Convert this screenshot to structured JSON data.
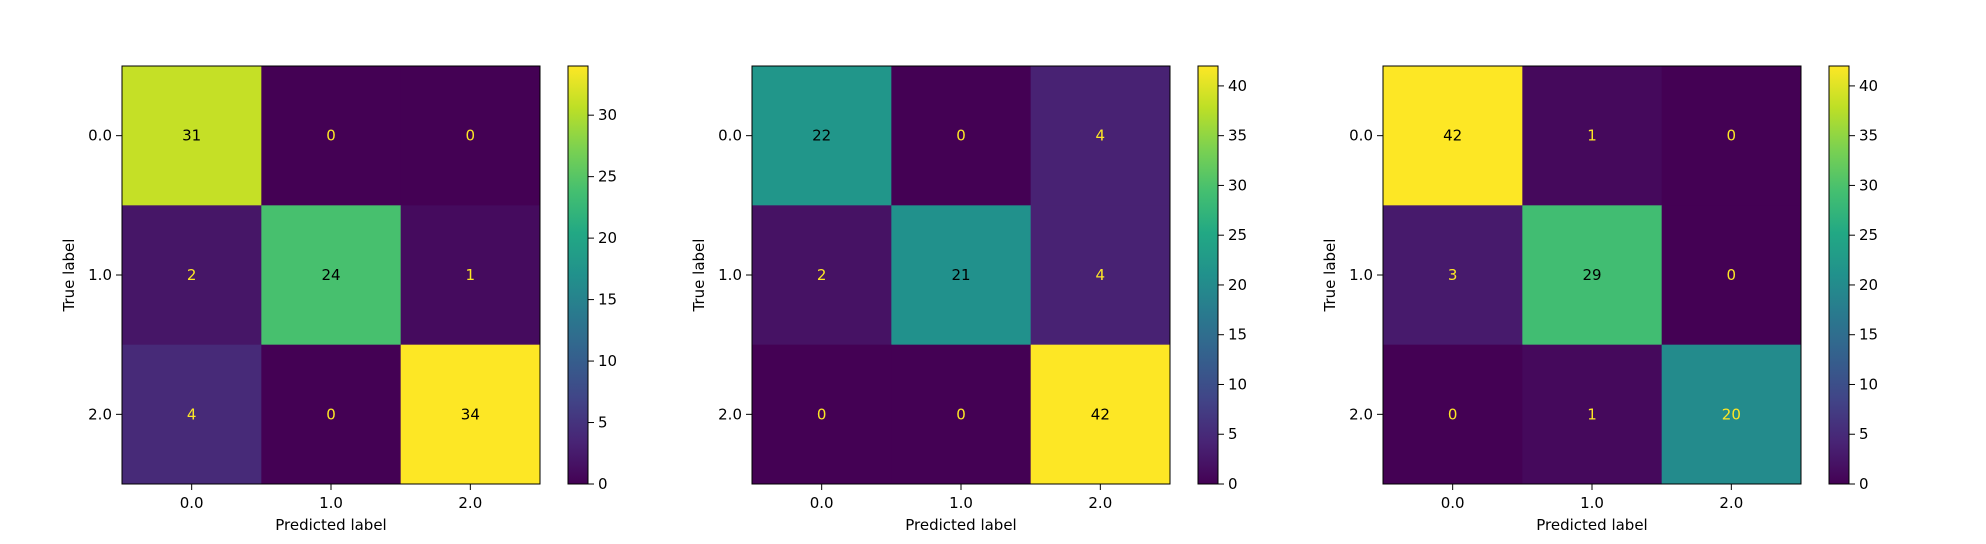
{
  "chart_data": [
    {
      "type": "heatmap",
      "colormap": "viridis",
      "xlabel": "Predicted label",
      "ylabel": "True label",
      "x_categories": [
        "0.0",
        "1.0",
        "2.0"
      ],
      "y_categories": [
        "0.0",
        "1.0",
        "2.0"
      ],
      "matrix": [
        [
          31,
          0,
          0
        ],
        [
          2,
          24,
          1
        ],
        [
          4,
          0,
          34
        ]
      ],
      "colorbar": {
        "min": 0,
        "max": 34,
        "ticks": [
          0,
          5,
          10,
          15,
          20,
          25,
          30
        ]
      },
      "text_colors": {
        "on_dark": "#fde725",
        "on_light": "#000000"
      }
    },
    {
      "type": "heatmap",
      "colormap": "viridis",
      "xlabel": "Predicted label",
      "ylabel": "True label",
      "x_categories": [
        "0.0",
        "1.0",
        "2.0"
      ],
      "y_categories": [
        "0.0",
        "1.0",
        "2.0"
      ],
      "matrix": [
        [
          22,
          0,
          4
        ],
        [
          2,
          21,
          4
        ],
        [
          0,
          0,
          42
        ]
      ],
      "colorbar": {
        "min": 0,
        "max": 42,
        "ticks": [
          0,
          5,
          10,
          15,
          20,
          25,
          30,
          35,
          40
        ]
      },
      "text_colors": {
        "on_dark": "#fde725",
        "on_light": "#000000"
      }
    },
    {
      "type": "heatmap",
      "colormap": "viridis",
      "xlabel": "Predicted label",
      "ylabel": "True label",
      "x_categories": [
        "0.0",
        "1.0",
        "2.0"
      ],
      "y_categories": [
        "0.0",
        "1.0",
        "2.0"
      ],
      "matrix": [
        [
          42,
          1,
          0
        ],
        [
          3,
          29,
          0
        ],
        [
          0,
          1,
          20
        ]
      ],
      "colorbar": {
        "min": 0,
        "max": 42,
        "ticks": [
          0,
          5,
          10,
          15,
          20,
          25,
          30,
          35,
          40
        ]
      },
      "text_colors": {
        "on_dark": "#fde725",
        "on_light": "#000000"
      }
    }
  ]
}
